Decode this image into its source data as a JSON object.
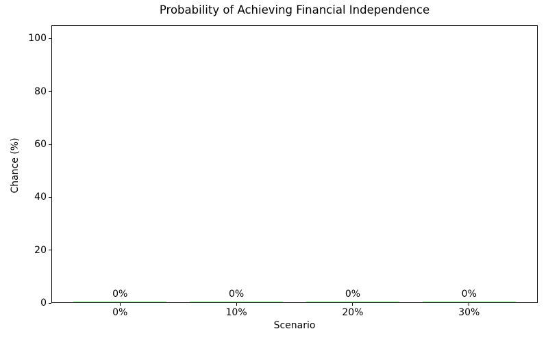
{
  "chart_data": {
    "type": "bar",
    "title": "Probability of Achieving Financial Independence",
    "xlabel": "Scenario",
    "ylabel": "Chance (%)",
    "categories": [
      "0%",
      "10%",
      "20%",
      "30%"
    ],
    "values": [
      0,
      0,
      0,
      0
    ],
    "bar_labels": [
      "0%",
      "0%",
      "0%",
      "0%"
    ],
    "yticks": [
      0,
      20,
      40,
      60,
      80,
      100
    ],
    "ylim": [
      0,
      105
    ],
    "bar_color": "#90EE90",
    "bar_width_fraction": 0.8,
    "grid": false,
    "legend": false,
    "frame": true
  }
}
